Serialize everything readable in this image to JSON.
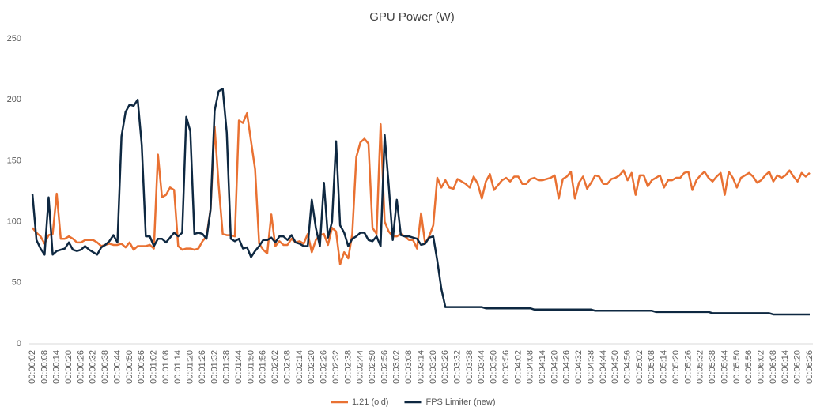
{
  "chart_data": {
    "type": "line",
    "title": "GPU Power (W)",
    "categories": [
      "00:00:02",
      null,
      null,
      "00:00:08",
      null,
      null,
      "00:00:14",
      null,
      null,
      "00:00:20",
      null,
      null,
      "00:00:26",
      null,
      null,
      "00:00:32",
      null,
      null,
      "00:00:38",
      null,
      null,
      "00:00:44",
      null,
      null,
      "00:00:50",
      null,
      null,
      "00:00:56",
      null,
      null,
      "00:01:02",
      null,
      null,
      "00:01:08",
      null,
      null,
      "00:01:14",
      null,
      null,
      "00:01:20",
      null,
      null,
      "00:01:26",
      null,
      null,
      "00:01:32",
      null,
      null,
      "00:01:38",
      null,
      null,
      "00:01:44",
      null,
      null,
      "00:01:50",
      null,
      null,
      "00:01:56",
      null,
      null,
      "00:02:02",
      null,
      null,
      "00:02:08",
      null,
      null,
      "00:02:14",
      null,
      null,
      "00:02:20",
      null,
      null,
      "00:02:26",
      null,
      null,
      "00:02:32",
      null,
      null,
      "00:02:38",
      null,
      null,
      "00:02:44",
      null,
      null,
      "00:02:50",
      null,
      null,
      "00:02:56",
      null,
      null,
      "00:03:02",
      null,
      null,
      "00:03:08",
      null,
      null,
      "00:03:14",
      null,
      null,
      "00:03:20",
      null,
      null,
      "00:03:26",
      null,
      null,
      "00:03:32",
      null,
      null,
      "00:03:38",
      null,
      null,
      "00:03:44",
      null,
      null,
      "00:03:50",
      null,
      null,
      "00:03:56",
      null,
      null,
      "00:04:02",
      null,
      null,
      "00:04:08",
      null,
      null,
      "00:04:14",
      null,
      null,
      "00:04:20",
      null,
      null,
      "00:04:26",
      null,
      null,
      "00:04:32",
      null,
      null,
      "00:04:38",
      null,
      null,
      "00:04:44",
      null,
      null,
      "00:04:50",
      null,
      null,
      "00:04:56",
      null,
      null,
      "00:05:02",
      null,
      null,
      "00:05:08",
      null,
      null,
      "00:05:14",
      null,
      null,
      "00:05:20",
      null,
      null,
      "00:05:26",
      null,
      null,
      "00:05:32",
      null,
      null,
      "00:05:38",
      null,
      null,
      "00:05:44",
      null,
      null,
      "00:05:50",
      null,
      null,
      "00:05:56",
      null,
      null,
      "00:06:02",
      null,
      null,
      "00:06:08",
      null,
      null,
      "00:06:14",
      null,
      null,
      "00:06:20",
      null,
      null,
      "00:06:26"
    ],
    "series": [
      {
        "name": "1.21 (old)",
        "color": "#e97132",
        "values": [
          95,
          91,
          88,
          82,
          89,
          90,
          123,
          86,
          86,
          88,
          86,
          83,
          83,
          85,
          85,
          85,
          83,
          80,
          81,
          82,
          81,
          81,
          82,
          79,
          83,
          77,
          80,
          80,
          80,
          81,
          78,
          155,
          120,
          122,
          128,
          126,
          80,
          77,
          78,
          78,
          77,
          78,
          84,
          88,
          110,
          178,
          130,
          90,
          89,
          89,
          88,
          183,
          181,
          189,
          166,
          143,
          82,
          77,
          74,
          106,
          80,
          84,
          81,
          81,
          86,
          83,
          84,
          82,
          90,
          75,
          85,
          89,
          90,
          81,
          95,
          92,
          65,
          75,
          70,
          90,
          153,
          165,
          168,
          164,
          95,
          90,
          180,
          100,
          92,
          88,
          88,
          90,
          88,
          85,
          85,
          78,
          107,
          82,
          88,
          97,
          136,
          128,
          134,
          128,
          127,
          135,
          133,
          131,
          128,
          137,
          131,
          119,
          133,
          139,
          126,
          130,
          134,
          136,
          133,
          137,
          137,
          131,
          131,
          135,
          136,
          134,
          134,
          135,
          136,
          138,
          119,
          135,
          137,
          141,
          119,
          132,
          137,
          127,
          132,
          138,
          137,
          131,
          131,
          135,
          136,
          138,
          142,
          134,
          140,
          122,
          138,
          138,
          129,
          134,
          136,
          138,
          128,
          134,
          134,
          136,
          136,
          140,
          141,
          126,
          134,
          138,
          141,
          136,
          133,
          137,
          140,
          122,
          141,
          136,
          128,
          136,
          138,
          140,
          137,
          132,
          134,
          138,
          141,
          133,
          138,
          136,
          138,
          142,
          137,
          133,
          140,
          137,
          140
        ]
      },
      {
        "name": "FPS Limiter (new)",
        "color": "#0e2841",
        "values": [
          123,
          85,
          78,
          73,
          120,
          73,
          76,
          77,
          78,
          83,
          77,
          76,
          77,
          80,
          77,
          75,
          73,
          79,
          81,
          84,
          89,
          83,
          170,
          190,
          196,
          195,
          200,
          163,
          88,
          88,
          80,
          86,
          86,
          83,
          87,
          91,
          88,
          91,
          186,
          174,
          90,
          91,
          90,
          86,
          110,
          191,
          207,
          209,
          173,
          86,
          84,
          86,
          78,
          79,
          71,
          76,
          80,
          85,
          85,
          87,
          83,
          88,
          88,
          85,
          89,
          83,
          82,
          80,
          80,
          118,
          95,
          80,
          132,
          87,
          100,
          166,
          97,
          91,
          80,
          86,
          88,
          91,
          91,
          85,
          84,
          88,
          80,
          171,
          130,
          85,
          118,
          89,
          88,
          88,
          87,
          86,
          81,
          82,
          87,
          88,
          68,
          45,
          30,
          30,
          30,
          30,
          30,
          30,
          30,
          30,
          30,
          30,
          29,
          29,
          29,
          29,
          29,
          29,
          29,
          29,
          29,
          29,
          29,
          29,
          28,
          28,
          28,
          28,
          28,
          28,
          28,
          28,
          28,
          28,
          28,
          28,
          28,
          28,
          28,
          27,
          27,
          27,
          27,
          27,
          27,
          27,
          27,
          27,
          27,
          27,
          27,
          27,
          27,
          27,
          26,
          26,
          26,
          26,
          26,
          26,
          26,
          26,
          26,
          26,
          26,
          26,
          26,
          26,
          25,
          25,
          25,
          25,
          25,
          25,
          25,
          25,
          25,
          25,
          25,
          25,
          25,
          25,
          25,
          24,
          24,
          24,
          24,
          24,
          24,
          24,
          24,
          24,
          24
        ]
      }
    ],
    "ylim": [
      0,
      250
    ],
    "yticks": [
      0,
      50,
      100,
      150,
      200,
      250
    ],
    "grid": false,
    "legend": "bottom"
  }
}
